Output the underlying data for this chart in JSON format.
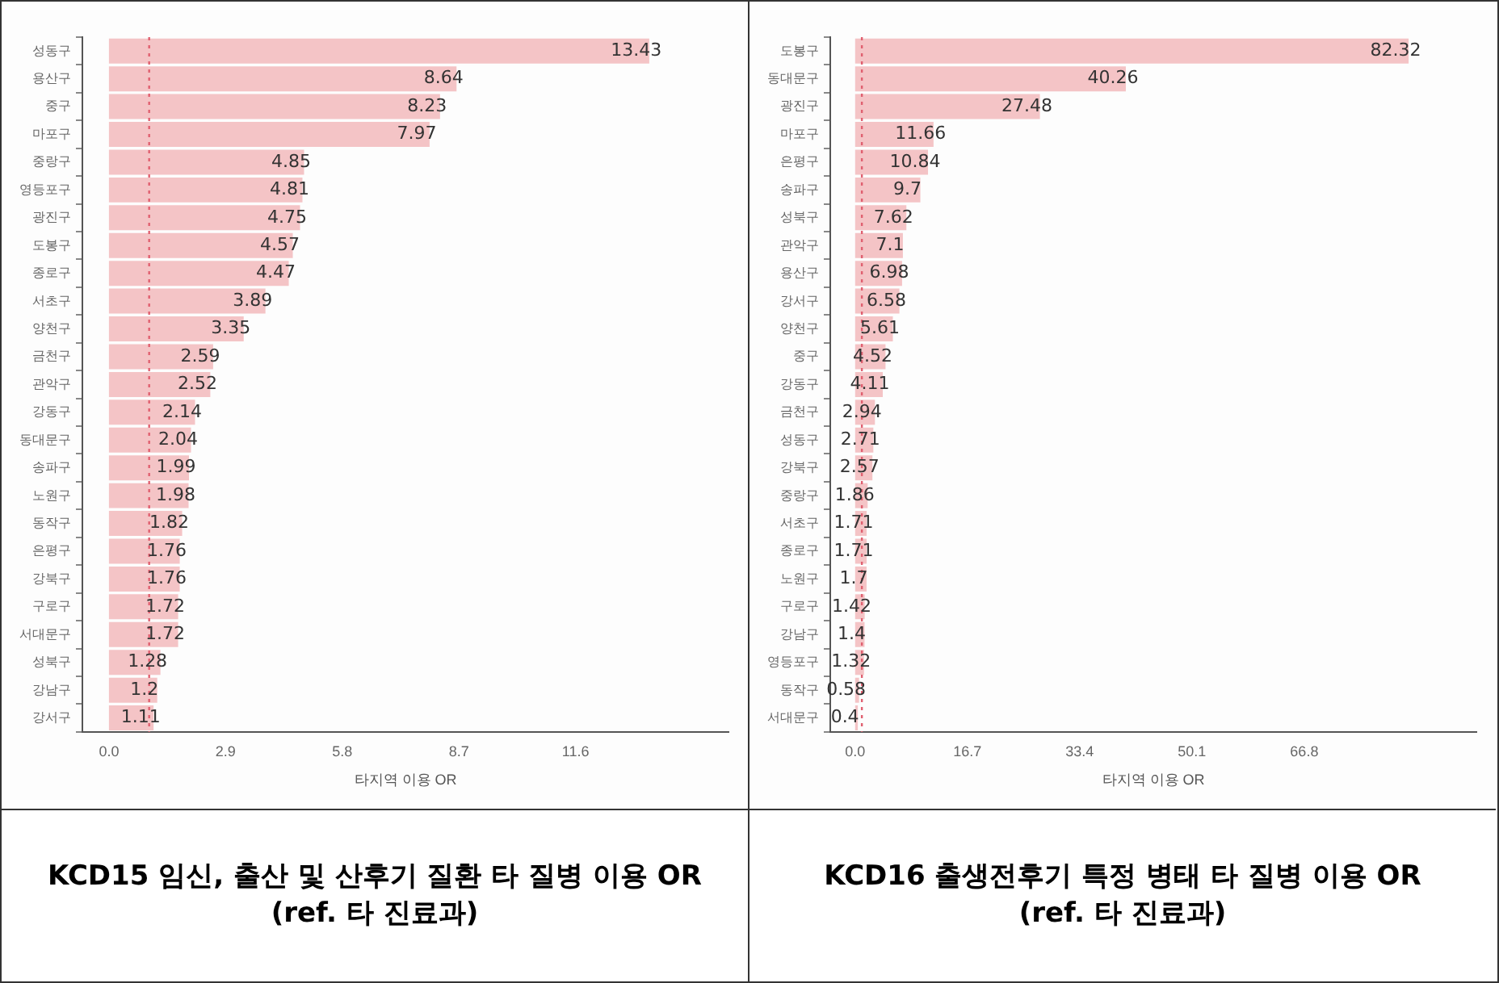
{
  "chart_data": [
    {
      "type": "bar",
      "orientation": "horizontal",
      "title": "KCD15 임신, 출산 및 산후기 질환 타 질병 이용 OR\n(ref. 타 진료과)",
      "xlabel": "타지역 이용 OR",
      "categories": [
        "성동구",
        "용산구",
        "중구",
        "마포구",
        "중랑구",
        "영등포구",
        "광진구",
        "도봉구",
        "종로구",
        "서초구",
        "양천구",
        "금천구",
        "관악구",
        "강동구",
        "동대문구",
        "송파구",
        "노원구",
        "동작구",
        "은평구",
        "강북구",
        "구로구",
        "서대문구",
        "성북구",
        "강남구",
        "강서구"
      ],
      "values": [
        13.43,
        8.64,
        8.23,
        7.97,
        4.85,
        4.81,
        4.75,
        4.57,
        4.47,
        3.89,
        3.35,
        2.59,
        2.52,
        2.14,
        2.04,
        1.99,
        1.98,
        1.82,
        1.76,
        1.76,
        1.72,
        1.72,
        1.28,
        1.2,
        1.11
      ],
      "color": "#f4c4c6",
      "data_labels": true,
      "xlim": [
        -0.66,
        15.4
      ],
      "xticks": [
        {
          "value": 0,
          "label": "0.0"
        },
        2.9,
        5.8,
        8.7,
        11.6
      ],
      "ref_lines": [
        {
          "axis": "x",
          "value": 1,
          "color": "#e06070",
          "line_style": "dotted"
        }
      ],
      "grid": false,
      "legend": false
    },
    {
      "type": "bar",
      "orientation": "horizontal",
      "title": "KCD16 출생전후기 특정 병태 타 질병 이용 OR\n(ref. 타 진료과)",
      "xlabel": "타지역 이용 OR",
      "categories": [
        "도봉구",
        "동대문구",
        "광진구",
        "마포구",
        "은평구",
        "송파구",
        "성북구",
        "관악구",
        "용산구",
        "강서구",
        "양천구",
        "중구",
        "강동구",
        "금천구",
        "성동구",
        "강북구",
        "중랑구",
        "서초구",
        "종로구",
        "노원구",
        "구로구",
        "강남구",
        "영등포구",
        "동작구",
        "서대문구"
      ],
      "values": [
        82.32,
        40.26,
        27.48,
        11.66,
        10.84,
        9.7,
        7.62,
        7.1,
        6.98,
        6.58,
        5.61,
        4.52,
        4.11,
        2.94,
        2.71,
        2.57,
        1.86,
        1.71,
        1.71,
        1.7,
        1.42,
        1.4,
        1.32,
        0.58,
        0.4
      ],
      "color": "#f4c4c6",
      "data_labels": true,
      "xlim": [
        -3.7,
        92.4
      ],
      "xticks": [
        {
          "value": 0,
          "label": "0.0"
        },
        16.7,
        33.4,
        50.1,
        66.8
      ],
      "ref_lines": [
        {
          "axis": "x",
          "value": 1,
          "color": "#e06070",
          "line_style": "dotted"
        }
      ],
      "grid": false,
      "legend": false
    }
  ]
}
